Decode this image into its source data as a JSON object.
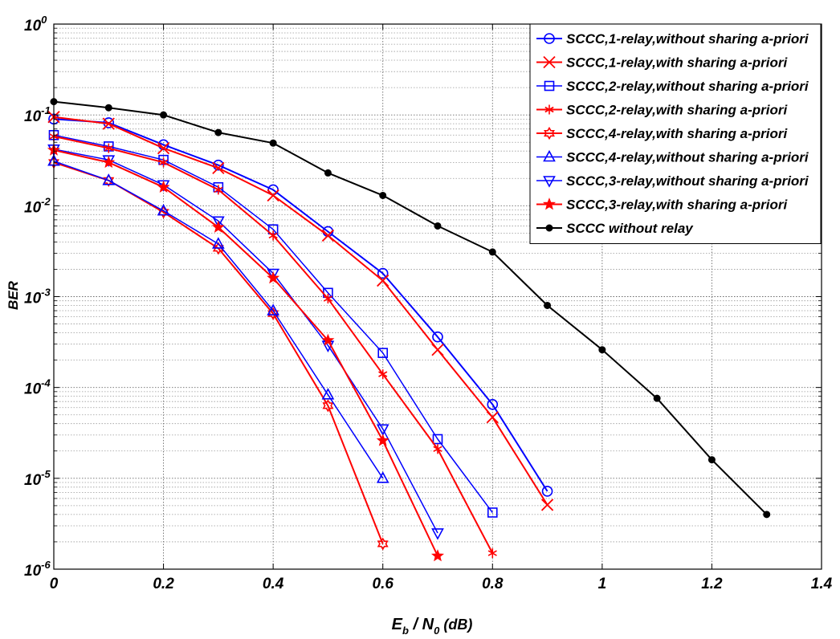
{
  "chart_data": {
    "type": "line",
    "xlabel": "E_b / N_0  (dB)",
    "xlabel_parts": {
      "e": "E",
      "e_sub": "b",
      "slash": " / ",
      "n": "N",
      "n_sub": "0",
      "unit": "  (dB)"
    },
    "ylabel": "BER",
    "xlim": [
      0,
      1.4
    ],
    "ylim": [
      1e-06,
      1
    ],
    "yscale": "log",
    "grid": true,
    "legend_position": "top-right",
    "x_ticks": [
      "0",
      "0.2",
      "0.4",
      "0.6",
      "0.8",
      "1",
      "1.2",
      "1.4"
    ],
    "y_ticks": [
      {
        "base": "10",
        "exp": "0"
      },
      {
        "base": "10",
        "exp": "-1"
      },
      {
        "base": "10",
        "exp": "-2"
      },
      {
        "base": "10",
        "exp": "-3"
      },
      {
        "base": "10",
        "exp": "-4"
      },
      {
        "base": "10",
        "exp": "-5"
      },
      {
        "base": "10",
        "exp": "-6"
      }
    ],
    "series": [
      {
        "name": "SCCC,1-relay,without sharing a-priori",
        "color": "#0000ff",
        "marker": "circle",
        "line_width": 2,
        "x": [
          0,
          0.1,
          0.2,
          0.3,
          0.4,
          0.5,
          0.6,
          0.7,
          0.8,
          0.9
        ],
        "y": [
          0.09,
          0.082,
          0.047,
          0.028,
          0.015,
          0.0052,
          0.0018,
          0.00036,
          6.5e-05,
          7.2e-06
        ]
      },
      {
        "name": "SCCC,1-relay,with sharing a-priori",
        "color": "#ff0000",
        "marker": "x",
        "line_width": 2,
        "x": [
          0,
          0.1,
          0.2,
          0.3,
          0.4,
          0.5,
          0.6,
          0.7,
          0.8,
          0.9
        ],
        "y": [
          0.095,
          0.08,
          0.043,
          0.026,
          0.013,
          0.0047,
          0.0015,
          0.00026,
          4.7e-05,
          5.1e-06
        ]
      },
      {
        "name": "SCCC,2-relay,without sharing a-priori",
        "color": "#0000ff",
        "marker": "square",
        "line_width": 1.5,
        "x": [
          0,
          0.1,
          0.2,
          0.3,
          0.4,
          0.5,
          0.6,
          0.7,
          0.8
        ],
        "y": [
          0.06,
          0.045,
          0.032,
          0.016,
          0.0055,
          0.0011,
          0.00024,
          2.7e-05,
          4.2e-06
        ]
      },
      {
        "name": "SCCC,2-relay,with sharing a-priori",
        "color": "#ff0000",
        "marker": "asterisk",
        "line_width": 2,
        "x": [
          0,
          0.1,
          0.2,
          0.3,
          0.4,
          0.5,
          0.6,
          0.7,
          0.8
        ],
        "y": [
          0.058,
          0.043,
          0.03,
          0.015,
          0.0047,
          0.00095,
          0.00014,
          2.1e-05,
          1.5e-06
        ]
      },
      {
        "name": "SCCC,4-relay,with sharing a-priori",
        "color": "#ff0000",
        "marker": "hexagram",
        "line_width": 2,
        "x": [
          0,
          0.1,
          0.2,
          0.3,
          0.4,
          0.5,
          0.6
        ],
        "y": [
          0.03,
          0.019,
          0.0085,
          0.0034,
          0.00065,
          6.3e-05,
          1.9e-06
        ]
      },
      {
        "name": "SCCC,4-relay,without sharing a-priori",
        "color": "#0000ff",
        "marker": "triangle-up",
        "line_width": 1.5,
        "x": [
          0,
          0.1,
          0.2,
          0.3,
          0.4,
          0.5,
          0.6
        ],
        "y": [
          0.031,
          0.019,
          0.0088,
          0.0038,
          0.0007,
          8.3e-05,
          1e-05
        ]
      },
      {
        "name": "SCCC,3-relay,without sharing a-priori",
        "color": "#0000ff",
        "marker": "triangle-down",
        "line_width": 1.5,
        "x": [
          0,
          0.1,
          0.2,
          0.3,
          0.4,
          0.5,
          0.6,
          0.7
        ],
        "y": [
          0.042,
          0.032,
          0.017,
          0.0068,
          0.0018,
          0.00029,
          3.5e-05,
          2.5e-06
        ]
      },
      {
        "name": "SCCC,3-relay,with sharing a-priori",
        "color": "#ff0000",
        "marker": "star",
        "line_width": 2,
        "x": [
          0,
          0.1,
          0.2,
          0.3,
          0.4,
          0.5,
          0.6,
          0.7
        ],
        "y": [
          0.041,
          0.03,
          0.016,
          0.0058,
          0.0016,
          0.00033,
          2.6e-05,
          1.4e-06
        ]
      },
      {
        "name": "SCCC without relay",
        "color": "#000000",
        "marker": "dot",
        "line_width": 2,
        "x": [
          0,
          0.1,
          0.2,
          0.3,
          0.4,
          0.5,
          0.6,
          0.7,
          0.8,
          0.9,
          1.0,
          1.1,
          1.2,
          1.3
        ],
        "y": [
          0.14,
          0.12,
          0.1,
          0.064,
          0.049,
          0.023,
          0.013,
          0.006,
          0.0031,
          0.0008,
          0.00026,
          7.6e-05,
          1.6e-05,
          4e-06
        ]
      }
    ]
  }
}
